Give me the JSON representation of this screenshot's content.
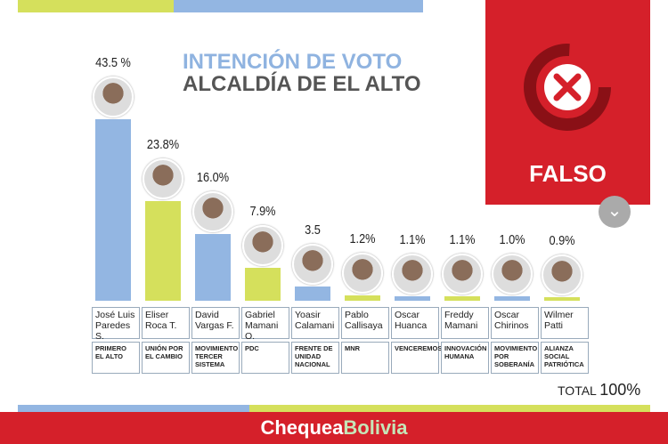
{
  "chart_data": {
    "type": "bar",
    "title": "INTENCIÓN DE VOTO",
    "subtitle": "ALCALDÍA DE EL ALTO",
    "categories": [
      "José Luis Paredes S.",
      "Eliser Roca T.",
      "David Vargas F.",
      "Gabriel Mamani O.",
      "Yoasir Calamani",
      "Pablo Callisaya",
      "Oscar Huanca",
      "Freddy Mamani",
      "Oscar Chirinos",
      "Wilmer Patti"
    ],
    "parties": [
      "PRIMERO EL ALTO",
      "UNIÓN POR EL CAMBIO",
      "MOVIMIENTO TERCER SISTEMA",
      "PDC",
      "FRENTE DE UNIDAD NACIONAL",
      "MNR",
      "VENCEREMOS",
      "INNOVACIÓN HUMANA",
      "MOVIMIENTO POR SOBERANÍA",
      "ALIANZA SOCIAL PATRIÓTICA"
    ],
    "values": [
      43.5,
      23.8,
      16.0,
      7.9,
      3.5,
      1.2,
      1.1,
      1.1,
      1.0,
      0.9
    ],
    "value_labels": [
      "43.5 %",
      "23.8%",
      "16.0%",
      "7.9%",
      "3.5",
      "1.2%",
      "1.1%",
      "1.1%",
      "1.0%",
      "0.9%"
    ],
    "colors": [
      "#93b6e2",
      "#d5e05c"
    ],
    "total_label": "TOTAL",
    "total_value": "100%"
  },
  "badge": {
    "label": "FALSO"
  },
  "footer": {
    "brand_first": "Chequea",
    "brand_second": "Bolivia"
  }
}
